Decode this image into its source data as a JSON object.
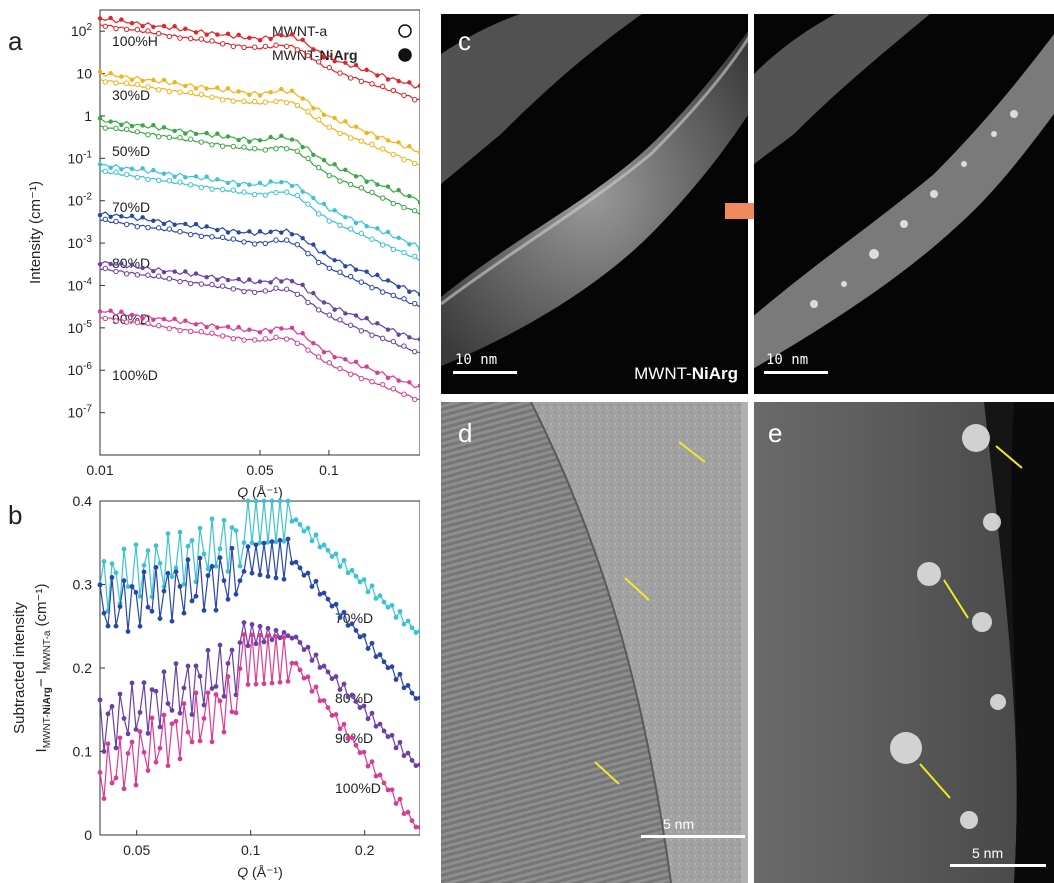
{
  "figure": {
    "panels": {
      "a": "a",
      "b": "b",
      "c": "c",
      "d": "d",
      "e": "e"
    }
  },
  "chart_data": [
    {
      "type": "line",
      "xscale": "log",
      "yscale": "log",
      "xlabel_var": "Q",
      "xlabel_unit": "(Å⁻¹)",
      "ylabel": "Intensity (cm⁻¹)",
      "xlim": [
        0.01,
        0.25
      ],
      "xticks": [
        {
          "v": 0.01,
          "label": "0.01"
        },
        {
          "v": 0.05,
          "label": "0.05"
        },
        {
          "v": 0.1,
          "label": "0.1"
        }
      ],
      "yticks": [
        {
          "base": "10",
          "exp": "2",
          "plain": ""
        },
        {
          "base": "",
          "exp": "",
          "plain": "10"
        },
        {
          "base": "",
          "exp": "",
          "plain": "1"
        },
        {
          "base": "10",
          "exp": "-1",
          "plain": ""
        },
        {
          "base": "10",
          "exp": "-2",
          "plain": ""
        },
        {
          "base": "10",
          "exp": "-3",
          "plain": ""
        },
        {
          "base": "10",
          "exp": "-4",
          "plain": ""
        },
        {
          "base": "10",
          "exp": "-5",
          "plain": ""
        },
        {
          "base": "10",
          "exp": "-6",
          "plain": ""
        },
        {
          "base": "10",
          "exp": "-7",
          "plain": ""
        }
      ],
      "legend": [
        {
          "prefix": "MWNT-a",
          "bold": "",
          "marker": "open-circle"
        },
        {
          "prefix": "MWNT-",
          "bold": "NiArg",
          "marker": "filled-circle"
        }
      ],
      "series": [
        {
          "name": "100%H",
          "color": "#e0242a",
          "log_start": 2.3,
          "shoulder": 0.055,
          "drop": 1.4
        },
        {
          "name": "30%D",
          "color": "#f2b318",
          "log_start": 1.0,
          "shoulder": 0.06,
          "drop": 1.9
        },
        {
          "name": "50%D",
          "color": "#3aa844",
          "log_start": -0.1,
          "shoulder": 0.06,
          "drop": 2.0
        },
        {
          "name": "70%D",
          "color": "#3cc3d3",
          "log_start": -1.15,
          "shoulder": 0.06,
          "drop": 2.1
        },
        {
          "name": "80%D",
          "color": "#2947a8",
          "log_start": -2.3,
          "shoulder": 0.06,
          "drop": 2.0
        },
        {
          "name": "90%D",
          "color": "#6a3fa7",
          "log_start": -3.45,
          "shoulder": 0.06,
          "drop": 1.9
        },
        {
          "name": "100%D",
          "color": "#d83c96",
          "log_start": -4.6,
          "shoulder": 0.06,
          "drop": 1.8
        }
      ]
    },
    {
      "type": "line",
      "xscale": "log",
      "xlabel_var": "Q",
      "xlabel_unit": "(Å⁻¹)",
      "ylabel_top": "Subtracted intensity",
      "ylabel_expr": {
        "I1": "I",
        "sub1a": "MWNT-",
        "sub1b": "NiArg",
        "minus": "− I",
        "sub2": "MWNT-a",
        "unit": " (cm⁻¹)"
      },
      "xlim": [
        0.04,
        0.28
      ],
      "ylim": [
        0,
        0.4
      ],
      "xticks": [
        {
          "v": 0.05,
          "label": "0.05"
        },
        {
          "v": 0.1,
          "label": "0.1"
        },
        {
          "v": 0.2,
          "label": "0.2"
        }
      ],
      "yticks": [
        {
          "v": 0,
          "label": "0"
        },
        {
          "v": 0.1,
          "label": "0.1"
        },
        {
          "v": 0.2,
          "label": "0.2"
        },
        {
          "v": 0.3,
          "label": "0.3"
        },
        {
          "v": 0.4,
          "label": "0.4"
        }
      ],
      "series": [
        {
          "name": "70%D",
          "color": "#3cc3d3",
          "base": 0.24,
          "lowlevel": 0.3,
          "peak": 0.38
        },
        {
          "name": "80%D",
          "color": "#2947a8",
          "base": 0.16,
          "lowlevel": 0.27,
          "peak": 0.33
        },
        {
          "name": "90%D",
          "color": "#6a3fa7",
          "base": 0.08,
          "lowlevel": 0.13,
          "peak": 0.24
        },
        {
          "name": "100%D",
          "color": "#d83c96",
          "base": 0.005,
          "lowlevel": 0.07,
          "peak": 0.21
        }
      ]
    }
  ],
  "images": {
    "c_left_scale": "10 nm",
    "c_right_scale": "10 nm",
    "c_caption_prefix": "MWNT-",
    "c_caption_bold": "NiArg",
    "d_scale": "5 nm",
    "e_scale": "5 nm"
  }
}
